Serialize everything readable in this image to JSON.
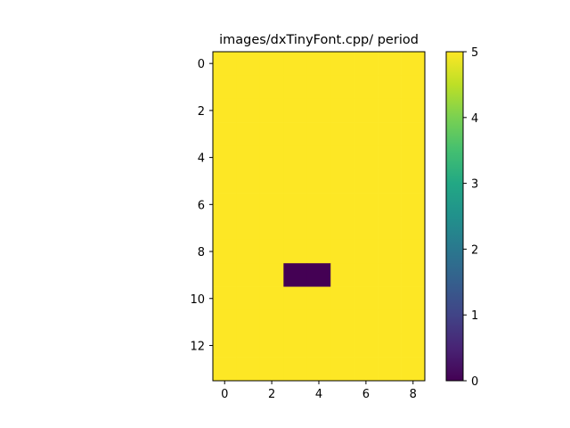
{
  "chart_data": {
    "type": "heatmap",
    "title": "images/dxTinyFont.cpp/ period",
    "xlabel": "",
    "ylabel": "",
    "rows": 14,
    "cols": 9,
    "default_value": 5,
    "cells": [
      {
        "row": 9,
        "col": 3,
        "value": 0
      },
      {
        "row": 9,
        "col": 4,
        "value": 0
      }
    ],
    "x_ticks": [
      0,
      2,
      4,
      6,
      8
    ],
    "y_ticks": [
      0,
      2,
      4,
      6,
      8,
      10,
      12
    ],
    "colorbar": {
      "colormap": "viridis",
      "vmin": 0,
      "vmax": 5,
      "ticks": [
        0,
        1,
        2,
        3,
        4,
        5
      ]
    }
  }
}
